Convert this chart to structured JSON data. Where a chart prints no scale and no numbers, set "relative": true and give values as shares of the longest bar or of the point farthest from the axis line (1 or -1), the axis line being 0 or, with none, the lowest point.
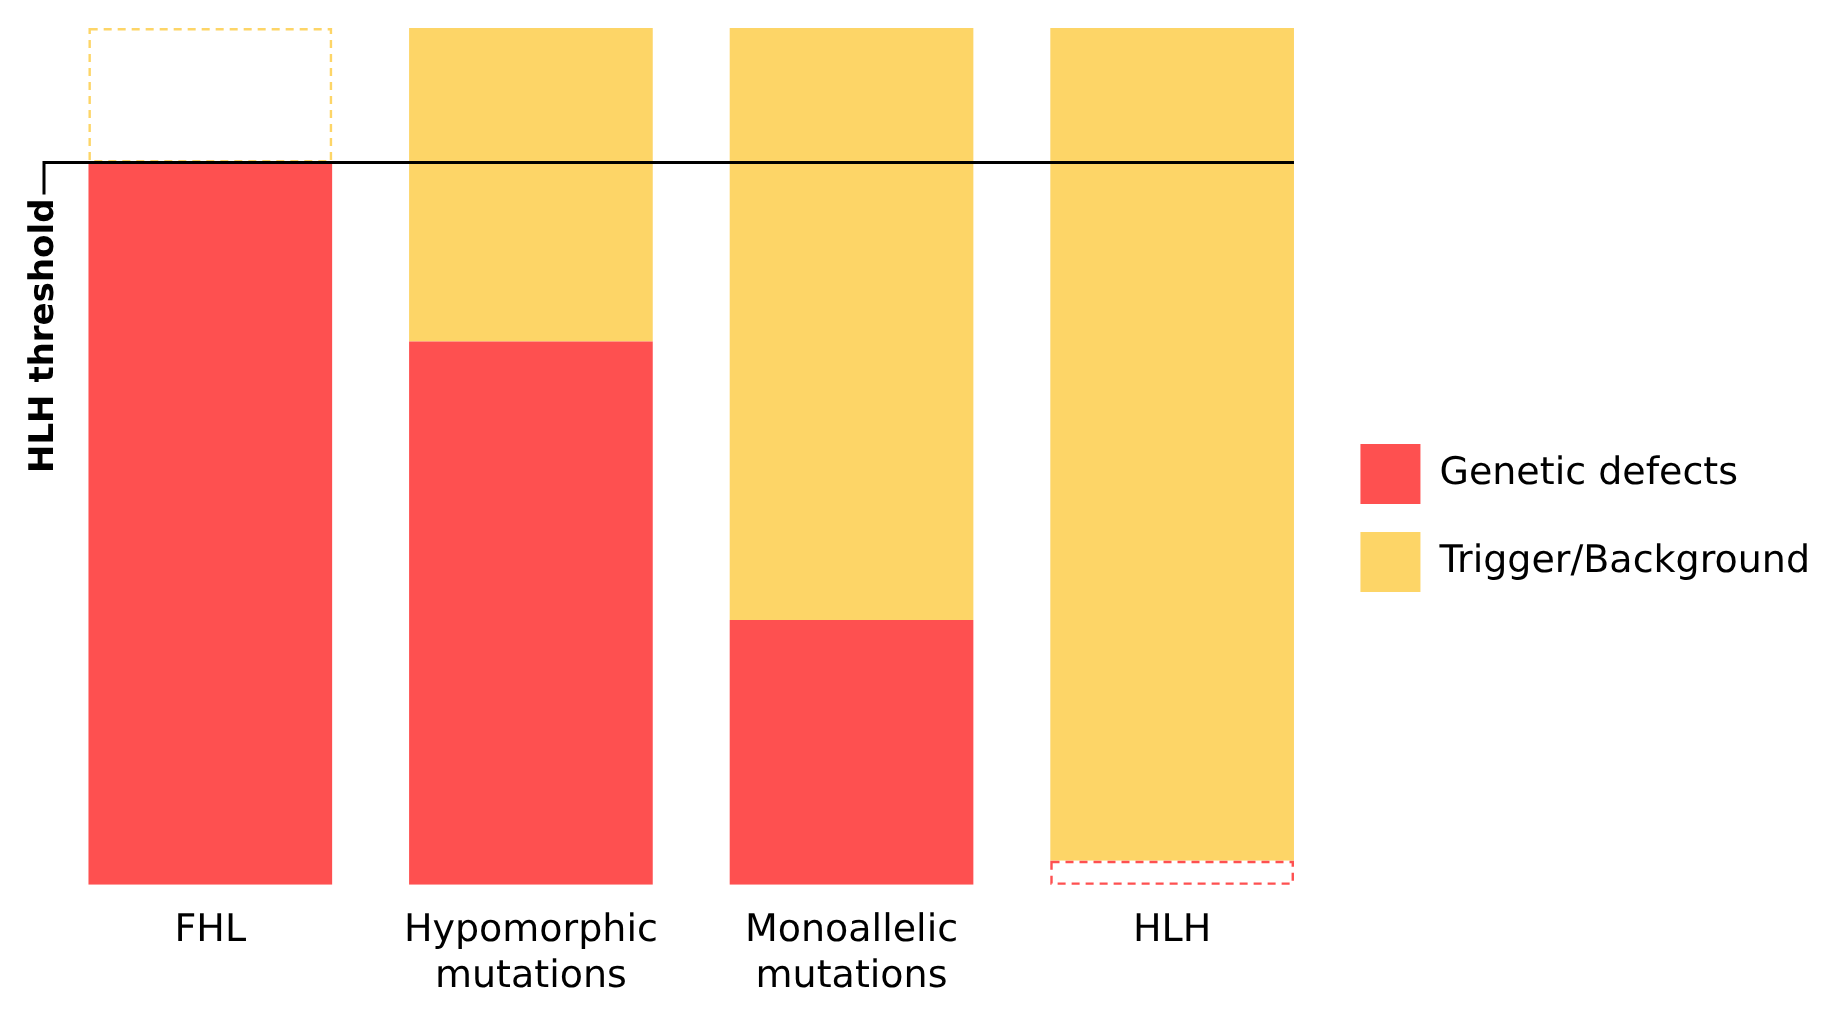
{
  "chart_data": {
    "type": "bar",
    "stacked": true,
    "relative": true,
    "categories": [
      "FHL",
      "Hypomorphic mutations",
      "Monoallelic mutations",
      "HLH"
    ],
    "series": [
      {
        "name": "Genetic defects",
        "color": "#fe5050",
        "colors": [
          "#fe5050",
          "#fe5050",
          "#fe5050",
          "#ffffff"
        ],
        "values": [
          0.843,
          0.634,
          0.309,
          0.028
        ]
      },
      {
        "name": "Trigger/Background",
        "color": "#fdd567",
        "colors": [
          "#ffffff",
          "#fdd567",
          "#fdd567",
          "#fdd567"
        ],
        "values": [
          0.157,
          0.366,
          0.691,
          0.972
        ]
      }
    ],
    "ref_lines": [
      {
        "axis": "y",
        "value": 0.843,
        "label": "HLH threshold",
        "color": "#000000"
      }
    ],
    "legend": "right"
  }
}
